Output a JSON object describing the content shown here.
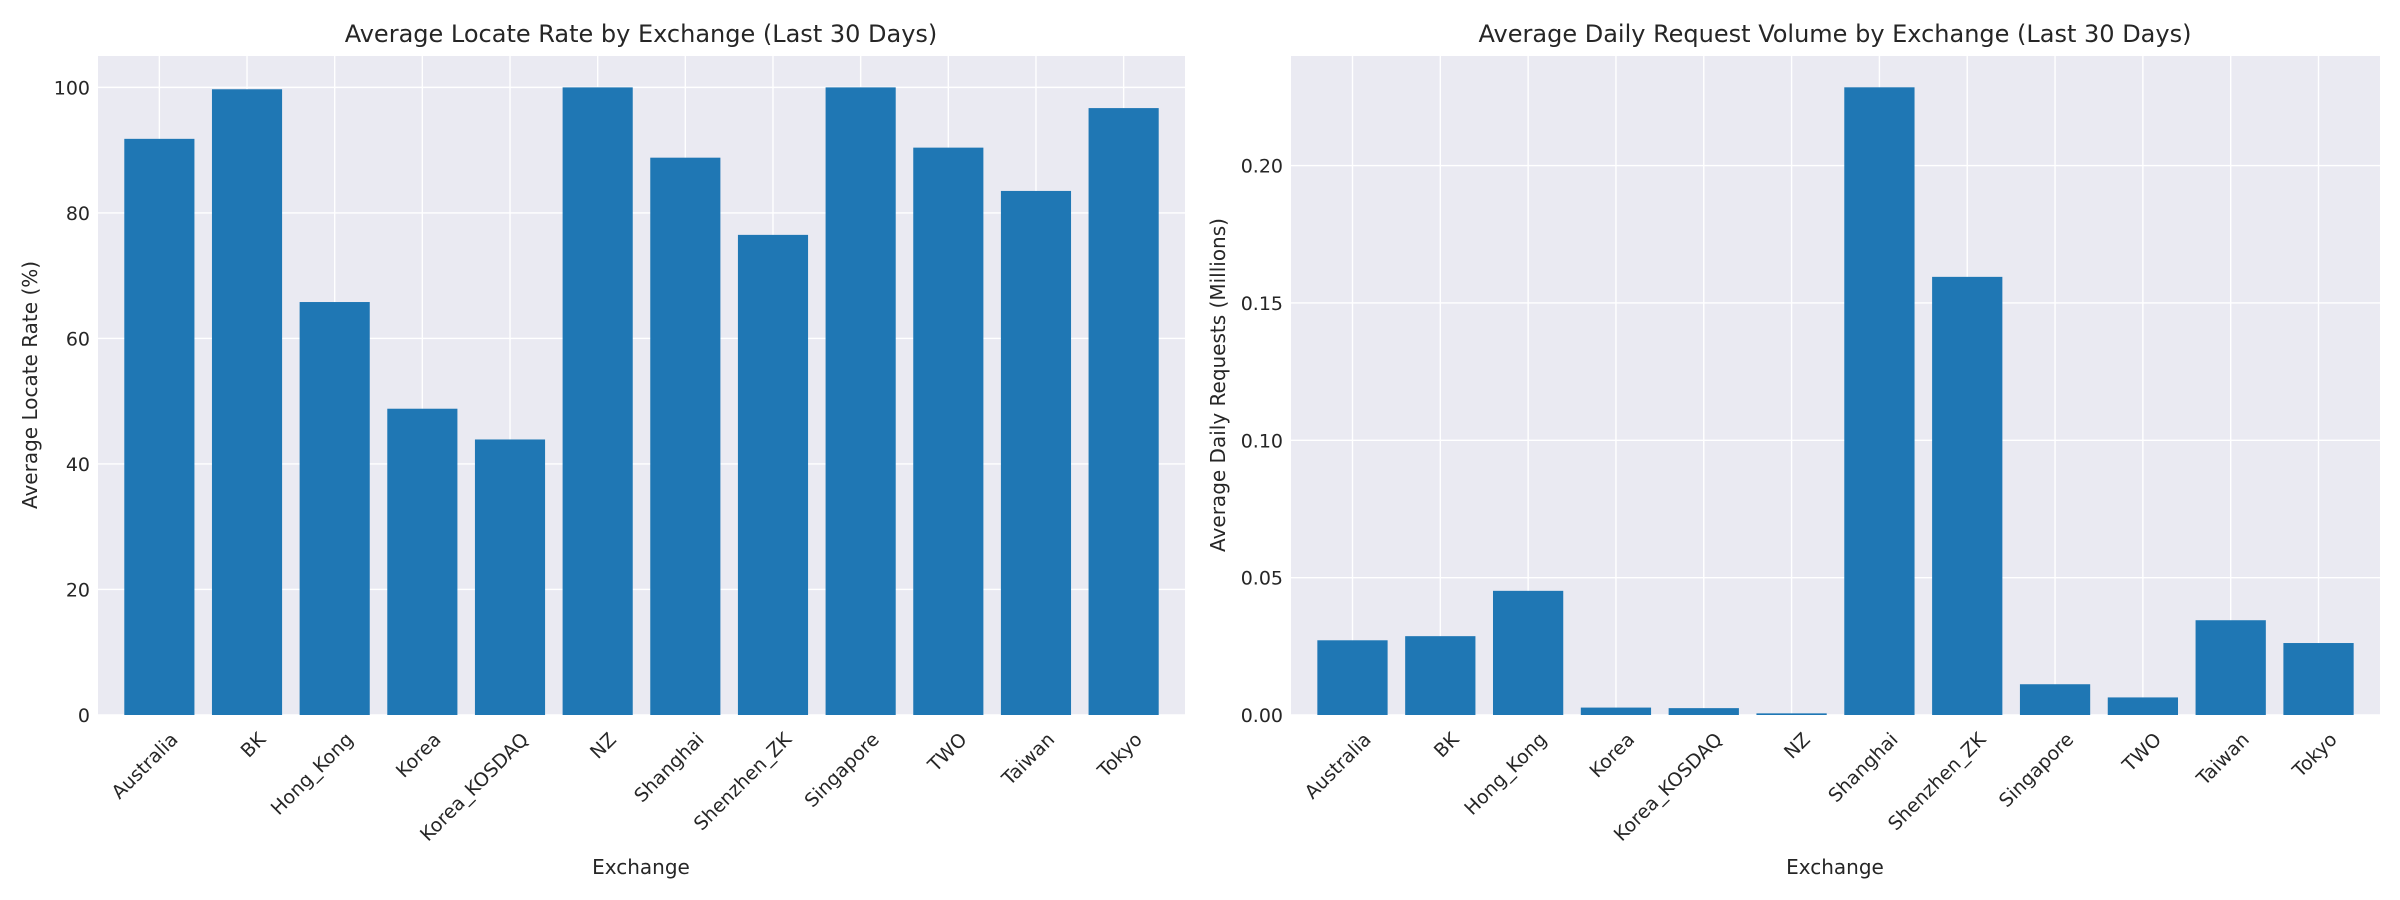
{
  "chart_data": [
    {
      "type": "bar",
      "title": "Average Locate Rate by Exchange (Last 30 Days)",
      "xlabel": "Exchange",
      "ylabel": "Average Locate Rate (%)",
      "categories": [
        "Australia",
        "BK",
        "Hong_Kong",
        "Korea",
        "Korea_KOSDAQ",
        "NZ",
        "Shanghai",
        "Shenzhen_ZK",
        "Singapore",
        "TWO",
        "Taiwan",
        "Tokyo"
      ],
      "values": [
        91.8,
        99.7,
        65.8,
        48.8,
        43.9,
        100.0,
        88.8,
        76.5,
        100.0,
        90.4,
        83.5,
        96.7
      ],
      "ylim": [
        0,
        105
      ],
      "yticks": [
        0,
        20,
        40,
        60,
        80,
        100
      ],
      "ytick_labels": [
        "0",
        "20",
        "40",
        "60",
        "80",
        "100"
      ],
      "grid": true,
      "bar_color": "#1f77b4",
      "background": "#eaeaf2"
    },
    {
      "type": "bar",
      "title": "Average Daily Request Volume by Exchange (Last 30 Days)",
      "xlabel": "Exchange",
      "ylabel": "Average Daily Requests (Millions)",
      "categories": [
        "Australia",
        "BK",
        "Hong_Kong",
        "Korea",
        "Korea_KOSDAQ",
        "NZ",
        "Shanghai",
        "Shenzhen_ZK",
        "Singapore",
        "TWO",
        "Taiwan",
        "Tokyo"
      ],
      "values": [
        0.0272,
        0.0287,
        0.0452,
        0.0027,
        0.0025,
        0.0006,
        0.2285,
        0.1595,
        0.0112,
        0.0064,
        0.0345,
        0.0262
      ],
      "ylim": [
        0,
        0.2399
      ],
      "yticks": [
        0,
        0.05,
        0.1,
        0.15,
        0.2
      ],
      "ytick_labels": [
        "0.00",
        "0.05",
        "0.10",
        "0.15",
        "0.20"
      ],
      "grid": true,
      "bar_color": "#1f77b4",
      "background": "#eaeaf2"
    }
  ]
}
